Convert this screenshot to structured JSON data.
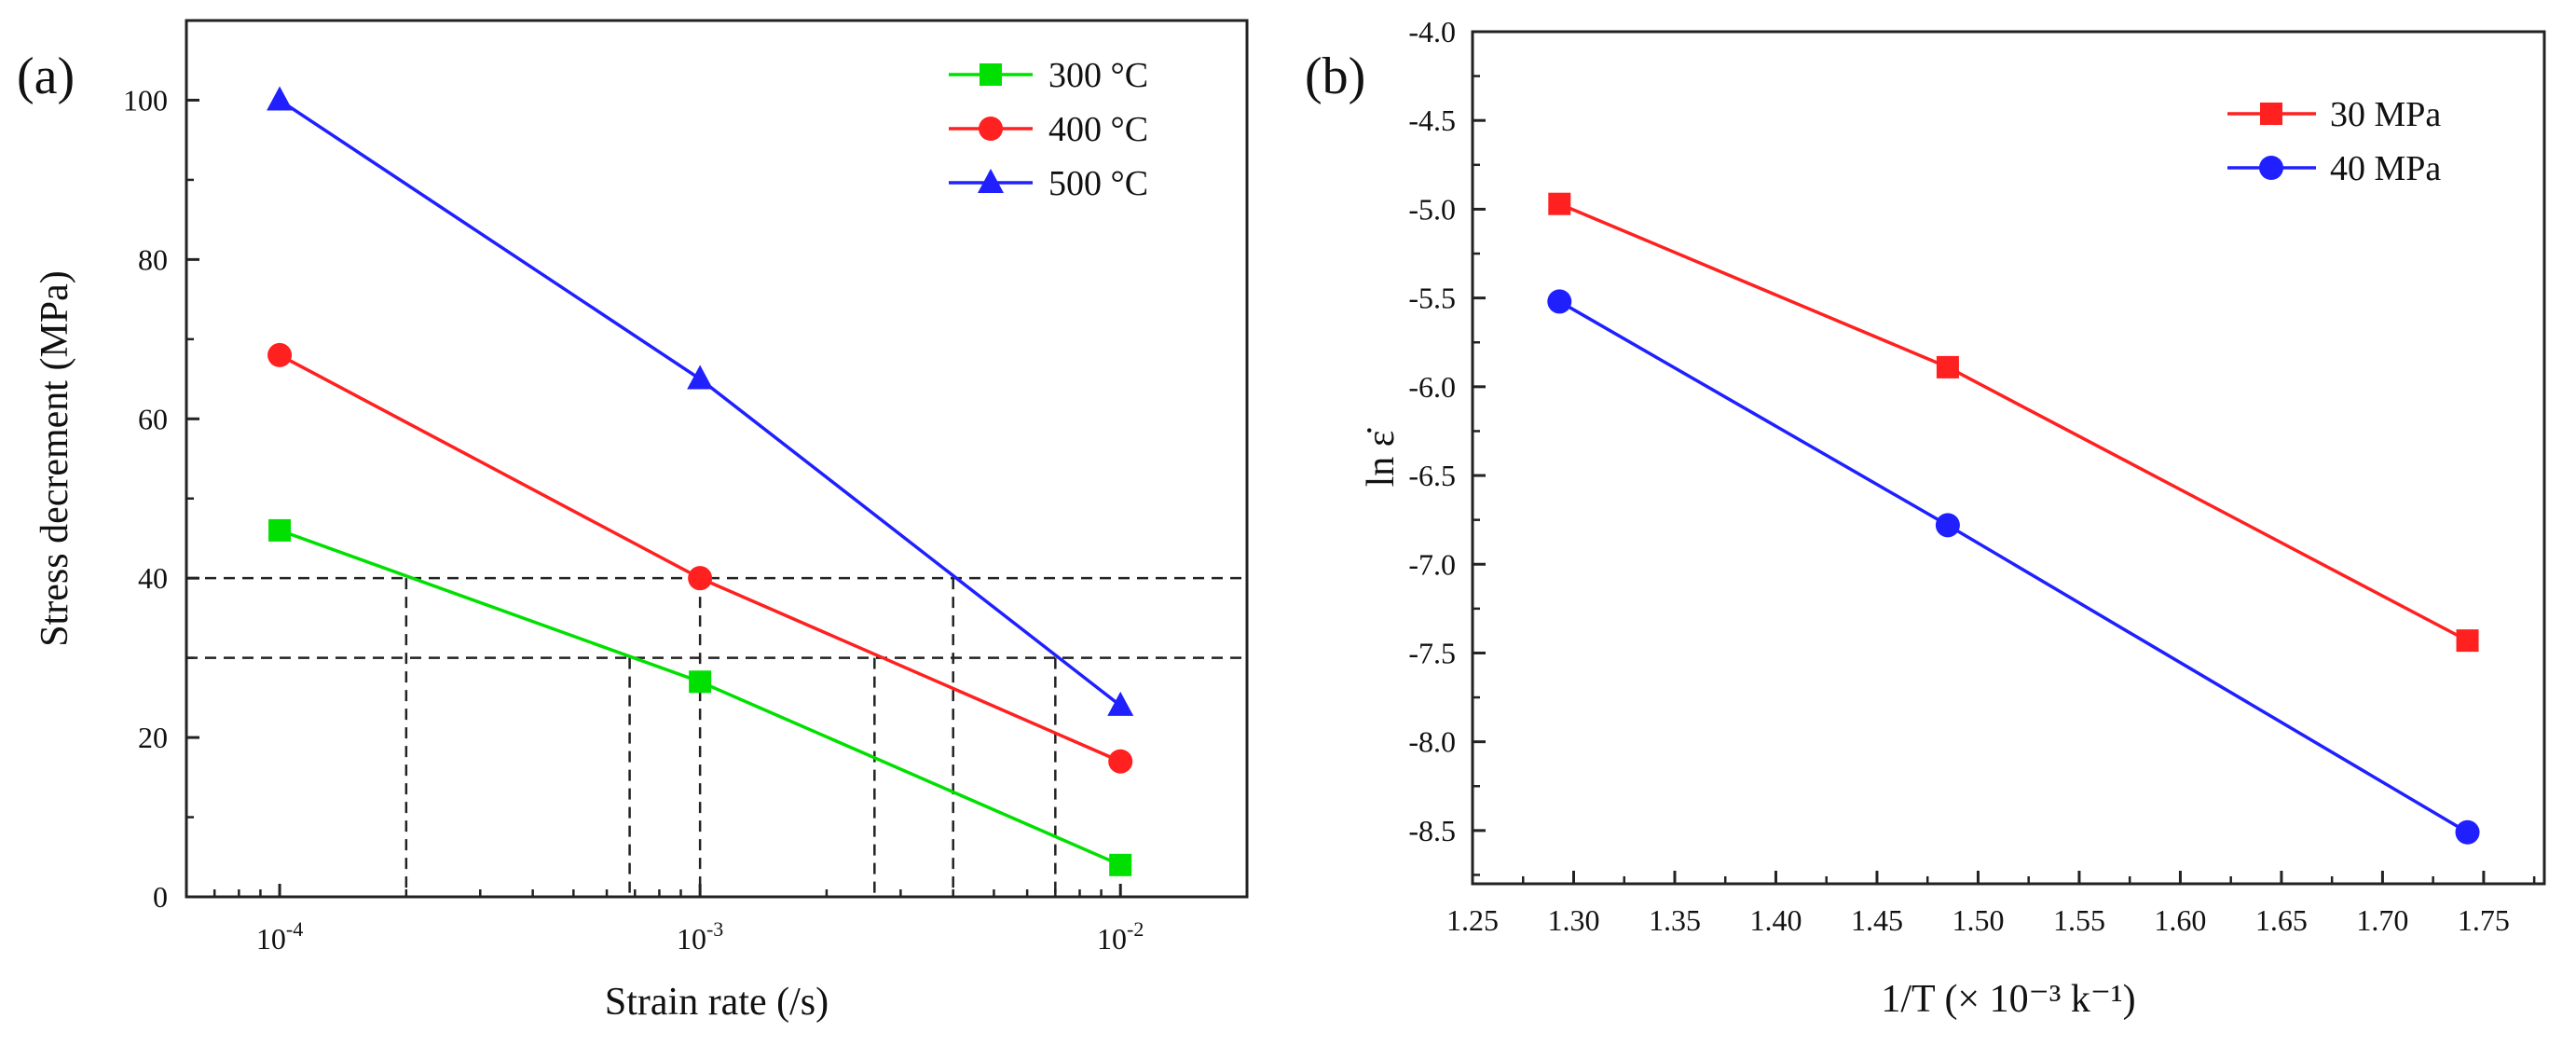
{
  "chart_data": [
    {
      "panel_label": "(a)",
      "type": "line",
      "xscale": "log",
      "xlim": [
        6e-05,
        0.02
      ],
      "ylim": [
        0,
        110
      ],
      "xlabel": "Strain rate (/s)",
      "ylabel": "Stress decrement (MPa)",
      "x": [
        0.0001,
        0.001,
        0.01
      ],
      "xticks": [
        {
          "value": 0.0001,
          "base": "10",
          "exp": "-4"
        },
        {
          "value": 0.001,
          "base": "10",
          "exp": "-3"
        },
        {
          "value": 0.01,
          "base": "10",
          "exp": "-2"
        }
      ],
      "yticks": [
        0,
        20,
        40,
        60,
        80,
        100
      ],
      "legend_position": "top-right",
      "series": [
        {
          "name": "300 °C",
          "color": "#00e000",
          "marker": "square",
          "values": [
            46,
            27,
            4
          ]
        },
        {
          "name": "400 °C",
          "color": "#ff2020",
          "marker": "circle",
          "values": [
            68,
            40,
            17
          ]
        },
        {
          "name": "500 °C",
          "color": "#2020ff",
          "marker": "triangle",
          "values": [
            100,
            65,
            24
          ]
        }
      ],
      "reference_lines": {
        "horizontal": [
          40,
          30
        ],
        "vertical": [
          0.0002,
          0.00068,
          0.001,
          0.0026,
          0.004,
          0.007
        ]
      }
    },
    {
      "panel_label": "(b)",
      "type": "line",
      "xlim": [
        1.25,
        1.78
      ],
      "ylim": [
        -8.8,
        -4.0
      ],
      "xlabel": "1/T (× 10⁻³ k⁻¹)",
      "ylabel": "ln ε̇",
      "xticks": [
        1.25,
        1.3,
        1.35,
        1.4,
        1.45,
        1.5,
        1.55,
        1.6,
        1.65,
        1.7,
        1.75
      ],
      "yticks": [
        -4.0,
        -4.5,
        -5.0,
        -5.5,
        -6.0,
        -6.5,
        -7.0,
        -7.5,
        -8.0,
        -8.5
      ],
      "legend_position": "top-right",
      "series": [
        {
          "name": "30 MPa",
          "color": "#ff2020",
          "marker": "square",
          "x": [
            1.293,
            1.485,
            1.742
          ],
          "values": [
            -4.97,
            -5.89,
            -7.43
          ]
        },
        {
          "name": "40 MPa",
          "color": "#2020ff",
          "marker": "circle",
          "x": [
            1.293,
            1.485,
            1.742
          ],
          "values": [
            -5.52,
            -6.78,
            -8.51
          ]
        }
      ]
    }
  ]
}
